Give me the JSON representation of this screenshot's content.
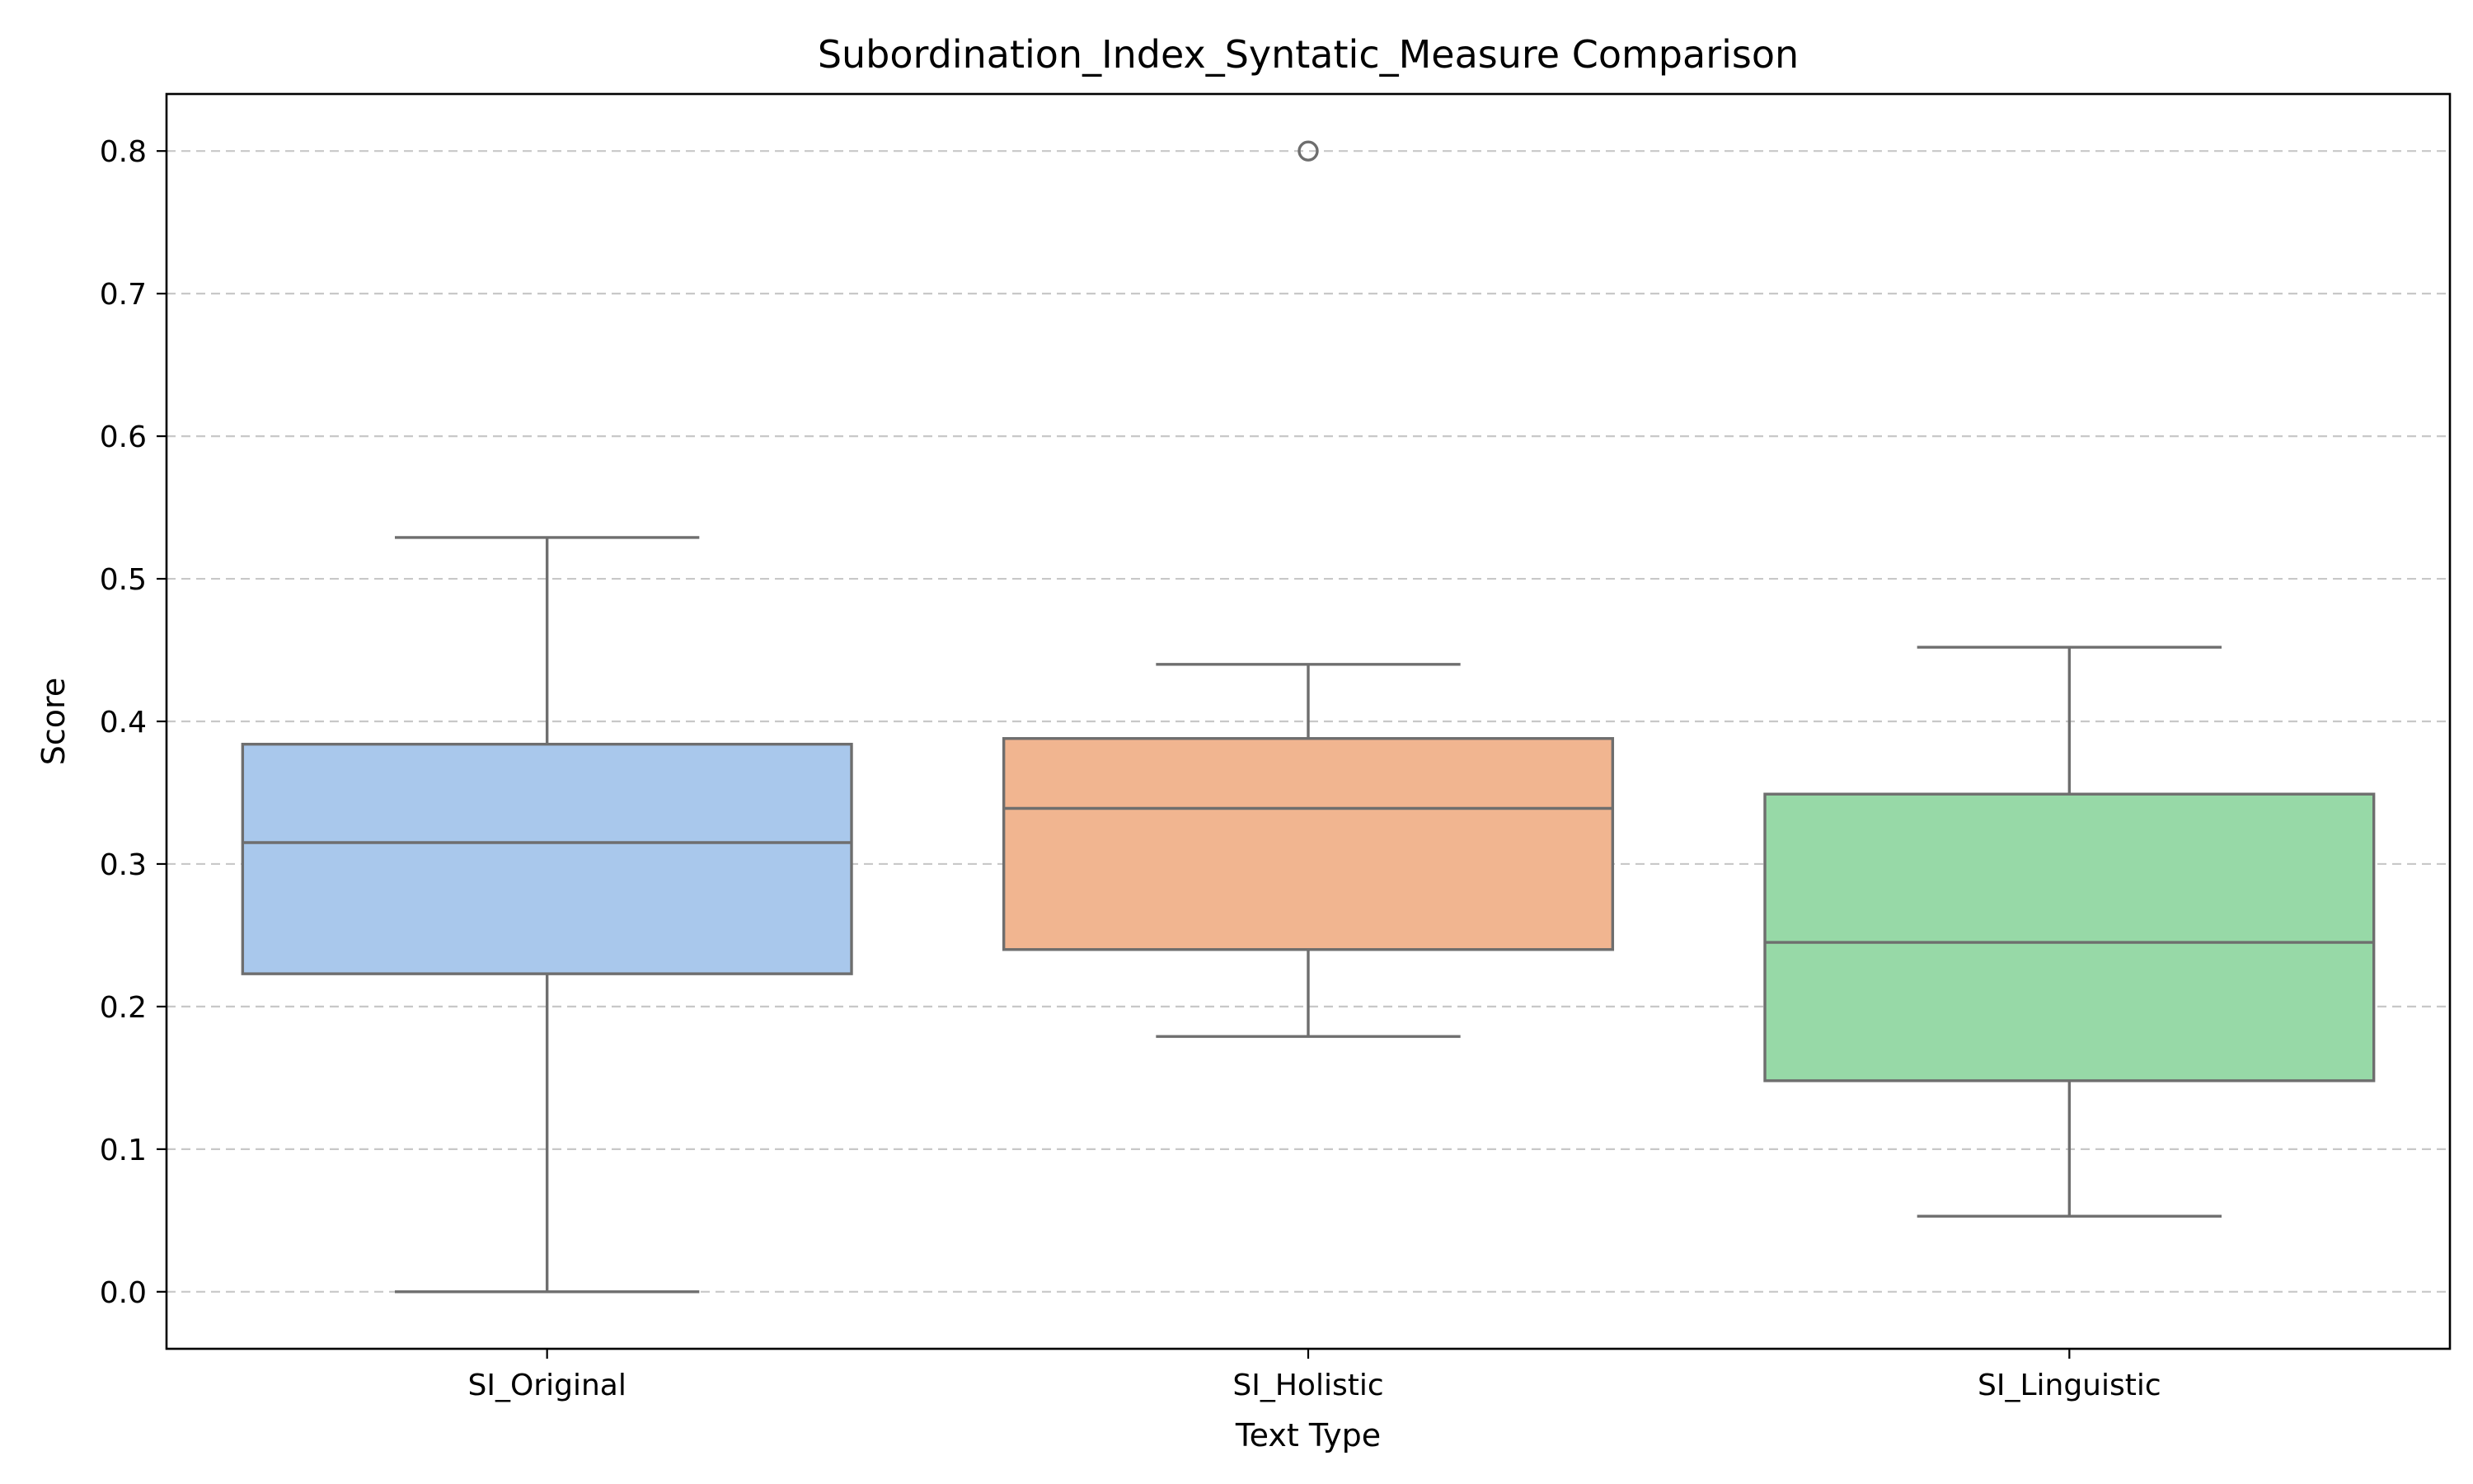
{
  "chart_data": {
    "type": "box",
    "title": "Subordination_Index_Syntatic_Measure Comparison",
    "xlabel": "Text Type",
    "ylabel": "Score",
    "ylim": [
      -0.04,
      0.84
    ],
    "yticks": [
      0.0,
      0.1,
      0.2,
      0.3,
      0.4,
      0.5,
      0.6,
      0.7,
      0.8
    ],
    "ytick_labels": [
      "0.0",
      "0.1",
      "0.2",
      "0.3",
      "0.4",
      "0.5",
      "0.6",
      "0.7",
      "0.8"
    ],
    "grid": "y, dashed",
    "categories": [
      "SI_Original",
      "SI_Holistic",
      "SI_Linguistic"
    ],
    "boxes": [
      {
        "category": "SI_Original",
        "whisker_low": 0.0,
        "q1": 0.223,
        "median": 0.315,
        "q3": 0.384,
        "whisker_high": 0.529,
        "outliers": [],
        "color": "#a9c8ec"
      },
      {
        "category": "SI_Holistic",
        "whisker_low": 0.179,
        "q1": 0.24,
        "median": 0.339,
        "q3": 0.388,
        "whisker_high": 0.44,
        "outliers": [
          0.8
        ],
        "color": "#f1b590"
      },
      {
        "category": "SI_Linguistic",
        "whisker_low": 0.053,
        "q1": 0.148,
        "median": 0.245,
        "q3": 0.349,
        "whisker_high": 0.452,
        "outliers": [],
        "color": "#97d9a7"
      }
    ],
    "line_color": "#6e6e6e"
  }
}
